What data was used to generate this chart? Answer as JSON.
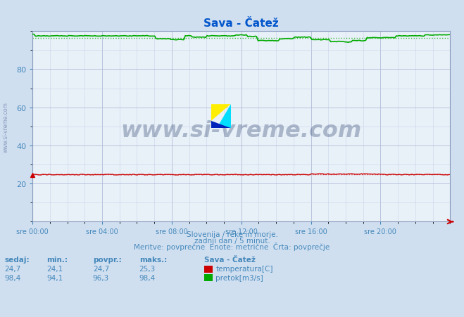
{
  "title": "Sava - Čatež",
  "title_color": "#0055cc",
  "bg_color": "#d0dff0",
  "plot_bg_color": "#e8f0f8",
  "grid_color_major": "#b0bcd8",
  "grid_color_minor": "#c8d4e8",
  "tick_color": "#4488bb",
  "ylim": [
    0,
    100
  ],
  "yticks": [
    20,
    40,
    60,
    80
  ],
  "xtick_labels": [
    "sre 00:00",
    "sre 04:00",
    "sre 08:00",
    "sre 12:00",
    "sre 16:00",
    "sre 20:00"
  ],
  "n_points": 288,
  "temp_min": 24.1,
  "temp_max": 25.3,
  "temp_avg": 24.7,
  "flow_min": 94.1,
  "flow_max": 98.4,
  "flow_avg": 96.3,
  "temp_color": "#cc0000",
  "flow_color": "#00aa00",
  "avg_color_temp": "#dd4444",
  "avg_color_flow": "#44bb44",
  "watermark_text": "www.si-vreme.com",
  "watermark_color": "#1a3060",
  "watermark_alpha": 0.3,
  "subtitle1": "Slovenija / reke in morje.",
  "subtitle2": "zadnji dan / 5 minut.",
  "subtitle3": "Meritve: povprečne  Enote: metrične  Črta: povprečje",
  "legend_title": "Sava - Čatež",
  "legend_temp": "temperatura[C]",
  "legend_flow": "pretok[m3/s]",
  "table_headers": [
    "sedaj:",
    "min.:",
    "povpr.:",
    "maks.:"
  ],
  "table_temp": [
    "24,7",
    "24,1",
    "24,7",
    "25,3"
  ],
  "table_flow": [
    "98,4",
    "94,1",
    "96,3",
    "98,4"
  ]
}
